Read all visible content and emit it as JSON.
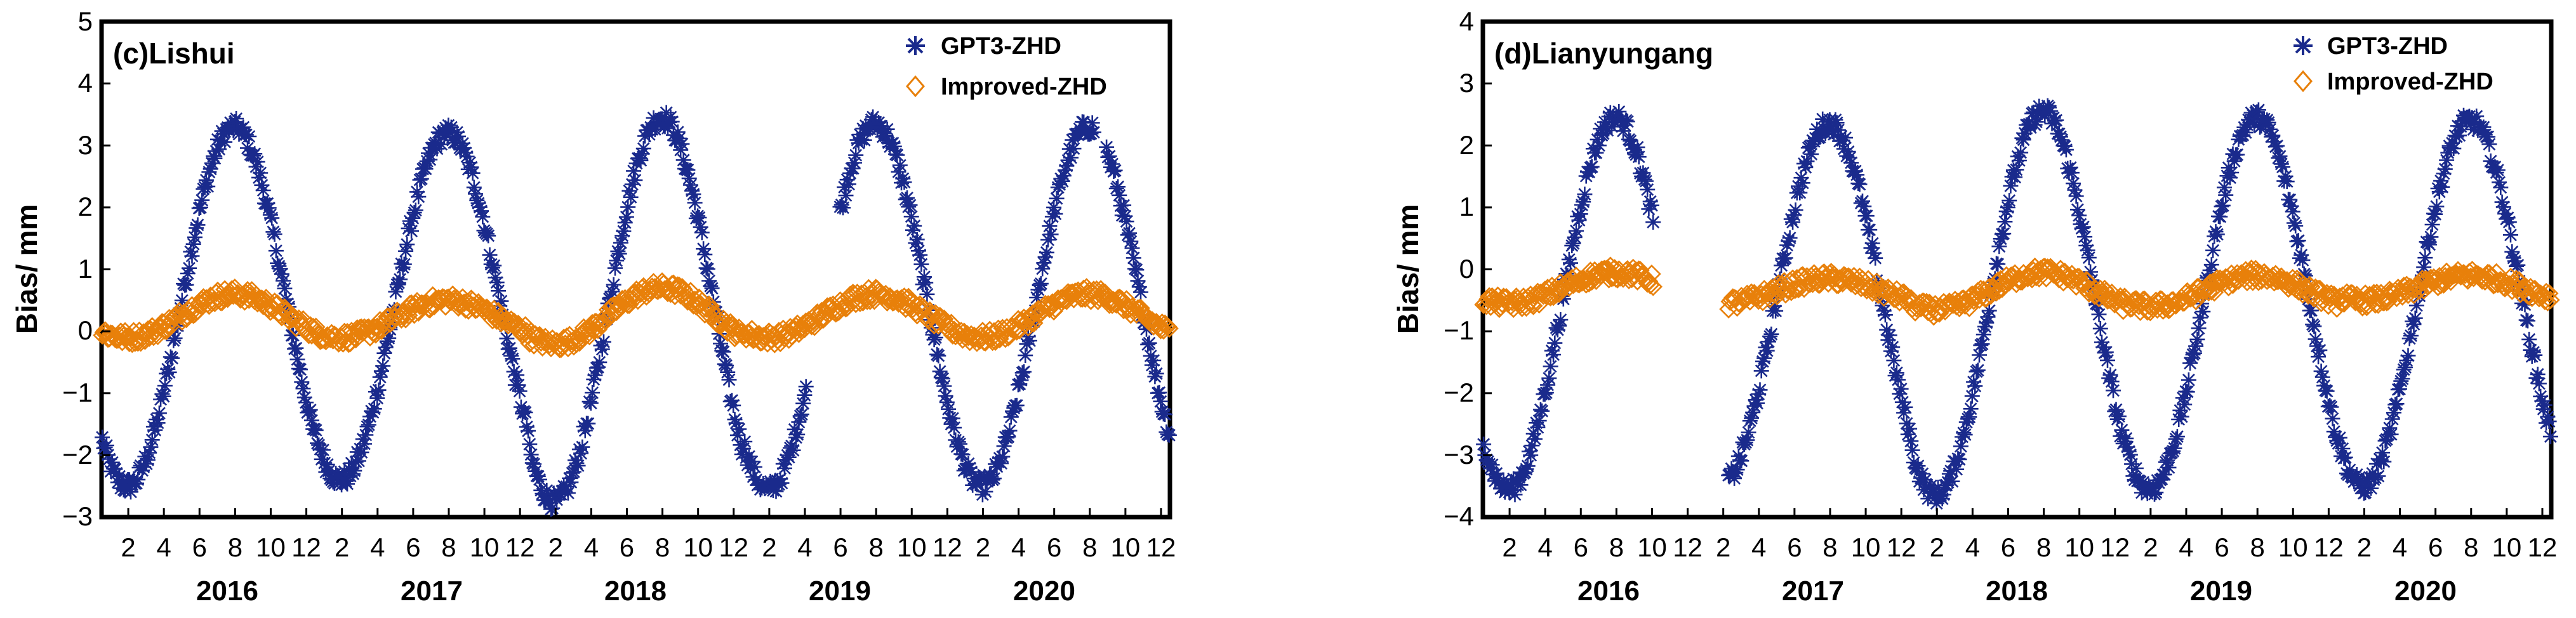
{
  "colors": {
    "gpt3": "#1a2a8c",
    "improved": "#e8800a",
    "axis": "#000000"
  },
  "chart_data": [
    {
      "type": "scatter",
      "title": "(c)Lishui",
      "ylabel": "Bias/ mm",
      "ylim": [
        -3,
        5
      ],
      "yticks": [
        "−3",
        "−2",
        "−1",
        "0",
        "1",
        "2",
        "3",
        "4",
        "5"
      ],
      "month_ticks": [
        "2",
        "4",
        "6",
        "8",
        "10",
        "12"
      ],
      "years": [
        "2016",
        "2017",
        "2018",
        "2019",
        "2020"
      ],
      "legend": [
        "GPT3-ZHD",
        "Improved-ZHD"
      ],
      "legend_position": "top-right",
      "series": [
        {
          "name": "GPT3-ZHD",
          "marker": "asterisk",
          "amplitude": [
            2.9,
            2.8,
            3.1,
            2.95,
            2.9
          ],
          "offset": [
            0.4,
            0.4,
            0.35,
            0.4,
            0.4
          ],
          "gaps": [
            [
              3.3,
              3.45
            ],
            [
              4.65,
              4.7
            ]
          ]
        },
        {
          "name": "Improved-ZHD",
          "marker": "diamond",
          "amplitude": [
            0.35,
            0.3,
            0.45,
            0.35,
            0.35
          ],
          "offset": [
            0.25,
            0.2,
            0.25,
            0.25,
            0.25
          ],
          "gaps": []
        }
      ]
    },
    {
      "type": "scatter",
      "title": "(d)Lianyungang",
      "ylabel": "Bias/ mm",
      "ylim": [
        -4,
        4
      ],
      "yticks": [
        "−4",
        "−3",
        "−2",
        "−1",
        "0",
        "1",
        "2",
        "3",
        "4"
      ],
      "month_ticks": [
        "2",
        "4",
        "6",
        "8",
        "10",
        "12"
      ],
      "years": [
        "2016",
        "2017",
        "2018",
        "2019",
        "2020"
      ],
      "legend": [
        "GPT3-ZHD",
        "Improved-ZHD"
      ],
      "legend_position": "top-right",
      "series": [
        {
          "name": "GPT3-ZHD",
          "marker": "asterisk",
          "amplitude": [
            3.0,
            2.9,
            3.1,
            3.0,
            2.95
          ],
          "offset": [
            -0.55,
            -0.55,
            -0.55,
            -0.55,
            -0.55
          ],
          "gaps": [
            [
              0.8,
              1.15
            ]
          ]
        },
        {
          "name": "Improved-ZHD",
          "marker": "diamond",
          "amplitude": [
            0.25,
            0.2,
            0.3,
            0.25,
            0.2
          ],
          "offset": [
            -0.3,
            -0.35,
            -0.35,
            -0.35,
            -0.3
          ],
          "gaps": [
            [
              0.8,
              1.15
            ]
          ]
        }
      ]
    }
  ]
}
